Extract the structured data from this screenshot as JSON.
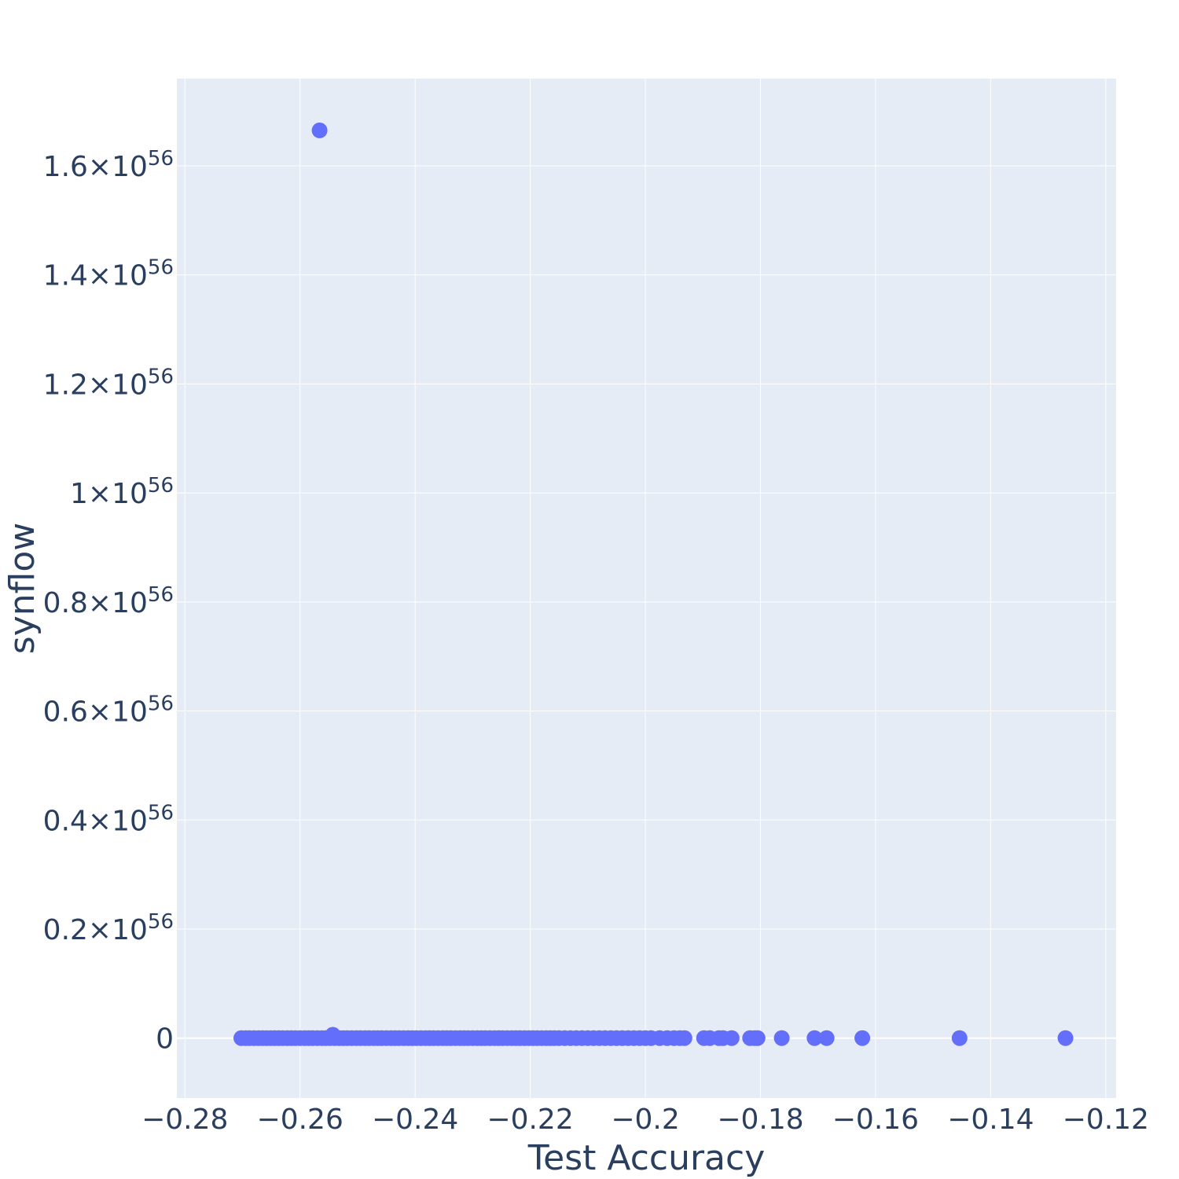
{
  "chart_data": {
    "type": "scatter",
    "xlabel": "Test Accuracy",
    "ylabel": "synflow",
    "xlim": [
      -0.2814,
      -0.1182
    ],
    "ylim": [
      -0.11,
      1.76
    ],
    "y_unit_note": "×10^56",
    "x_ticks": [
      {
        "v": -0.28,
        "label": "−0.28"
      },
      {
        "v": -0.26,
        "label": "−0.26"
      },
      {
        "v": -0.24,
        "label": "−0.24"
      },
      {
        "v": -0.22,
        "label": "−0.22"
      },
      {
        "v": -0.2,
        "label": "−0.2"
      },
      {
        "v": -0.18,
        "label": "−0.18"
      },
      {
        "v": -0.16,
        "label": "−0.16"
      },
      {
        "v": -0.14,
        "label": "−0.14"
      },
      {
        "v": -0.12,
        "label": "−0.12"
      }
    ],
    "y_ticks": [
      {
        "v": 0,
        "mant": "0",
        "exp": ""
      },
      {
        "v": 0.2,
        "mant": "0.2×10",
        "exp": "56"
      },
      {
        "v": 0.4,
        "mant": "0.4×10",
        "exp": "56"
      },
      {
        "v": 0.6,
        "mant": "0.6×10",
        "exp": "56"
      },
      {
        "v": 0.8,
        "mant": "0.8×10",
        "exp": "56"
      },
      {
        "v": 1.0,
        "mant": "1×10",
        "exp": "56"
      },
      {
        "v": 1.2,
        "mant": "1.2×10",
        "exp": "56"
      },
      {
        "v": 1.4,
        "mant": "1.4×10",
        "exp": "56"
      },
      {
        "v": 1.6,
        "mant": "1.6×10",
        "exp": "56"
      }
    ],
    "grid": true,
    "marker_color": "#636efa",
    "plot_bg": "#e5ecf6",
    "text_color": "#2a3f5f",
    "series": [
      {
        "points": [
          [
            -0.2566,
            1.665
          ],
          [
            -0.2543,
            0.006
          ],
          [
            -0.2702,
            0
          ],
          [
            -0.2694,
            0
          ],
          [
            -0.2688,
            0
          ],
          [
            -0.268,
            0
          ],
          [
            -0.2672,
            0
          ],
          [
            -0.2665,
            0
          ],
          [
            -0.2658,
            0
          ],
          [
            -0.2651,
            0
          ],
          [
            -0.2644,
            0
          ],
          [
            -0.2637,
            0
          ],
          [
            -0.263,
            0
          ],
          [
            -0.2622,
            0
          ],
          [
            -0.2615,
            0
          ],
          [
            -0.2608,
            0
          ],
          [
            -0.26,
            0
          ],
          [
            -0.2592,
            0
          ],
          [
            -0.2585,
            0
          ],
          [
            -0.2578,
            0
          ],
          [
            -0.257,
            0
          ],
          [
            -0.2562,
            0
          ],
          [
            -0.2555,
            0
          ],
          [
            -0.2548,
            0
          ],
          [
            -0.254,
            0
          ],
          [
            -0.2532,
            0
          ],
          [
            -0.2525,
            0
          ],
          [
            -0.2518,
            0
          ],
          [
            -0.251,
            0
          ],
          [
            -0.2502,
            0
          ],
          [
            -0.2495,
            0
          ],
          [
            -0.2487,
            0
          ],
          [
            -0.248,
            0
          ],
          [
            -0.2472,
            0
          ],
          [
            -0.2465,
            0
          ],
          [
            -0.2458,
            0
          ],
          [
            -0.245,
            0
          ],
          [
            -0.2442,
            0
          ],
          [
            -0.2435,
            0
          ],
          [
            -0.2428,
            0
          ],
          [
            -0.242,
            0
          ],
          [
            -0.2412,
            0
          ],
          [
            -0.2405,
            0
          ],
          [
            -0.2398,
            0
          ],
          [
            -0.239,
            0
          ],
          [
            -0.2382,
            0
          ],
          [
            -0.2375,
            0
          ],
          [
            -0.2368,
            0
          ],
          [
            -0.236,
            0
          ],
          [
            -0.2352,
            0
          ],
          [
            -0.2345,
            0
          ],
          [
            -0.2338,
            0
          ],
          [
            -0.233,
            0
          ],
          [
            -0.2322,
            0
          ],
          [
            -0.2315,
            0
          ],
          [
            -0.2308,
            0
          ],
          [
            -0.23,
            0
          ],
          [
            -0.2292,
            0
          ],
          [
            -0.2285,
            0
          ],
          [
            -0.2278,
            0
          ],
          [
            -0.227,
            0
          ],
          [
            -0.2262,
            0
          ],
          [
            -0.2255,
            0
          ],
          [
            -0.2248,
            0
          ],
          [
            -0.224,
            0
          ],
          [
            -0.2232,
            0
          ],
          [
            -0.2225,
            0
          ],
          [
            -0.2218,
            0
          ],
          [
            -0.221,
            0
          ],
          [
            -0.2202,
            0
          ],
          [
            -0.2195,
            0
          ],
          [
            -0.2188,
            0
          ],
          [
            -0.218,
            0
          ],
          [
            -0.2172,
            0
          ],
          [
            -0.2165,
            0
          ],
          [
            -0.2158,
            0
          ],
          [
            -0.215,
            0
          ],
          [
            -0.214,
            0
          ],
          [
            -0.213,
            0
          ],
          [
            -0.212,
            0
          ],
          [
            -0.211,
            0
          ],
          [
            -0.21,
            0
          ],
          [
            -0.209,
            0
          ],
          [
            -0.208,
            0
          ],
          [
            -0.207,
            0
          ],
          [
            -0.206,
            0
          ],
          [
            -0.205,
            0
          ],
          [
            -0.204,
            0
          ],
          [
            -0.203,
            0
          ],
          [
            -0.202,
            0
          ],
          [
            -0.201,
            0
          ],
          [
            -0.2,
            0
          ],
          [
            -0.199,
            0
          ],
          [
            -0.1975,
            0
          ],
          [
            -0.1962,
            0
          ],
          [
            -0.195,
            0
          ],
          [
            -0.194,
            0
          ],
          [
            -0.1932,
            0
          ],
          [
            -0.1898,
            0
          ],
          [
            -0.1888,
            0
          ],
          [
            -0.1872,
            0
          ],
          [
            -0.1865,
            0
          ],
          [
            -0.185,
            0
          ],
          [
            -0.1818,
            0
          ],
          [
            -0.181,
            0
          ],
          [
            -0.1805,
            0
          ],
          [
            -0.1763,
            0
          ],
          [
            -0.1706,
            0
          ],
          [
            -0.1685,
            0
          ],
          [
            -0.1623,
            0
          ],
          [
            -0.1454,
            0
          ],
          [
            -0.127,
            0
          ]
        ]
      }
    ]
  }
}
